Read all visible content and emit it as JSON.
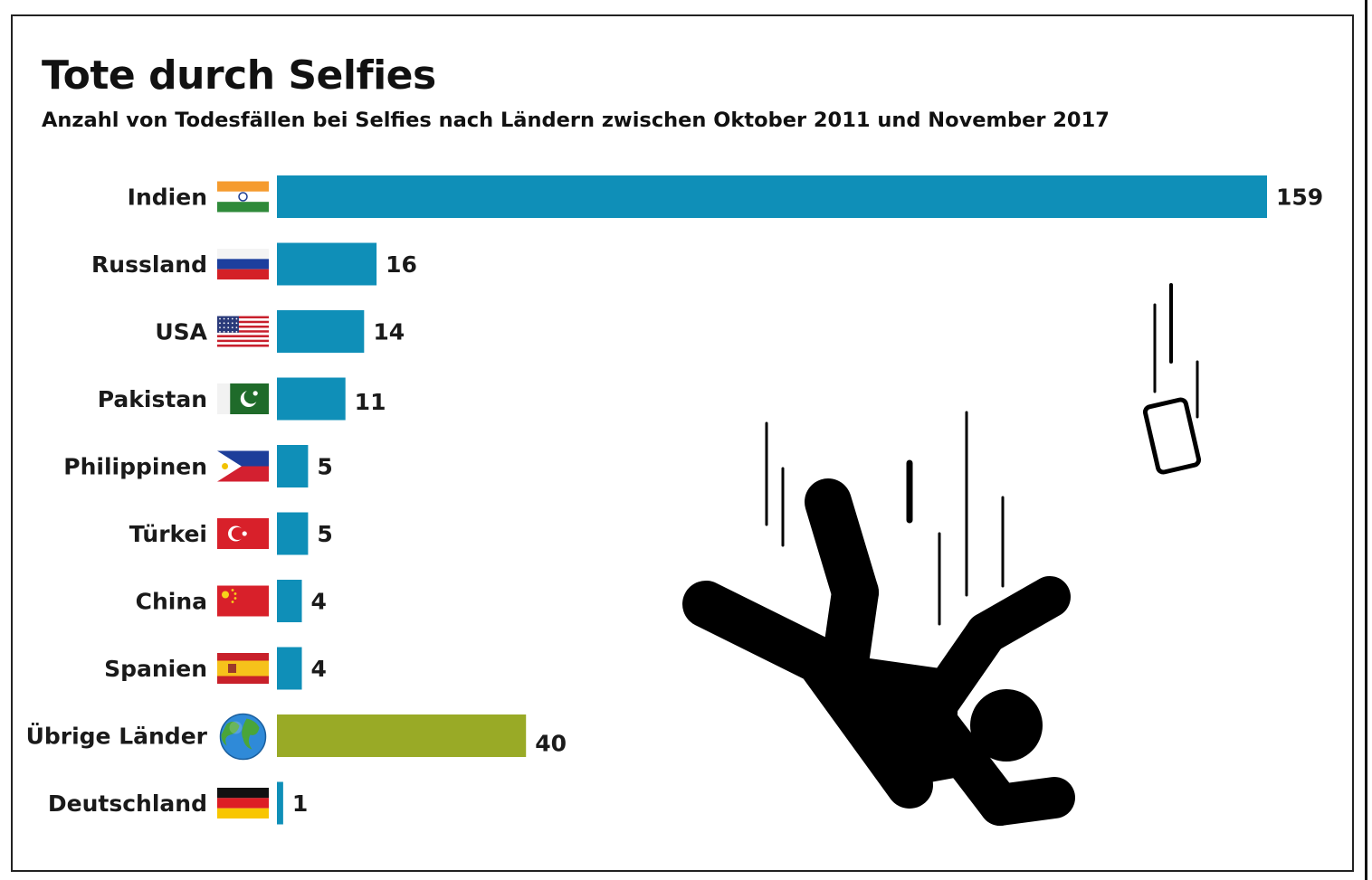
{
  "title": "Tote durch Selfies",
  "subtitle": "Anzahl von Todesfällen bei Selfies nach Ländern zwischen Oktober 2011 und November 2017",
  "colors": {
    "main_bar": "#0f8fb8",
    "other_bar": "#99aa26",
    "text": "#1a1a1a"
  },
  "chart_data": {
    "type": "bar",
    "orientation": "horizontal",
    "title": "Tote durch Selfies",
    "subtitle": "Anzahl von Todesfällen bei Selfies nach Ländern zwischen Oktober 2011 und November 2017",
    "categories": [
      "Indien",
      "Russland",
      "USA",
      "Pakistan",
      "Philippinen",
      "Türkei",
      "China",
      "Spanien",
      "Übrige Länder",
      "Deutschland"
    ],
    "values": [
      159,
      16,
      14,
      11,
      5,
      5,
      4,
      4,
      40,
      1
    ],
    "flags": [
      "flag-india-icon",
      "flag-russia-icon",
      "flag-usa-icon",
      "flag-pakistan-icon",
      "flag-philippines-icon",
      "flag-turkey-icon",
      "flag-china-icon",
      "flag-spain-icon",
      "globe-icon",
      "flag-germany-icon"
    ],
    "highlight_category": "Übrige Länder",
    "xlim": [
      0,
      159
    ],
    "grid": false,
    "legend": "none"
  },
  "illustration": {
    "figure": "falling-person-icon",
    "phone": "smartphone-icon"
  }
}
